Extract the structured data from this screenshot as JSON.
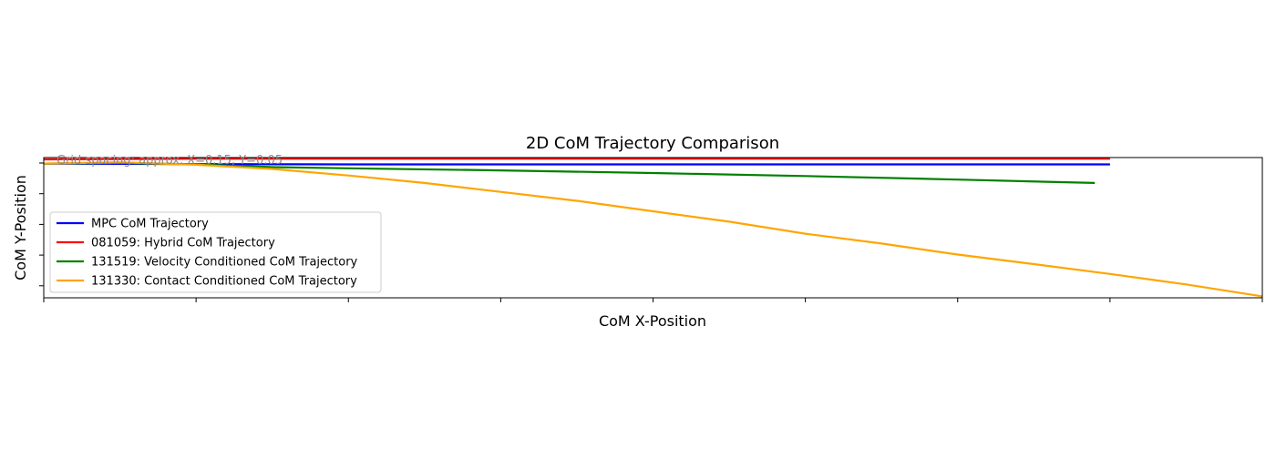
{
  "chart_data": {
    "type": "line",
    "title": "2D CoM Trajectory Comparison",
    "xlabel": "CoM X-Position",
    "ylabel": "CoM Y-Position",
    "xlim": [
      0,
      8
    ],
    "ylim": [
      -0.45,
      0.02
    ],
    "tick_labels_visible": false,
    "x_tick_count": 9,
    "y_tick_count": 5,
    "grid": false,
    "legend_position": "center-left",
    "annotation": "Grid spacing: approx. X=0.15, Y=0.05",
    "series": [
      {
        "name": "MPC CoM Trajectory",
        "color": "#0000ff",
        "x": [
          0,
          1,
          2,
          3,
          4,
          5,
          6,
          7
        ],
        "y": [
          0,
          -0.002,
          -0.003,
          -0.003,
          -0.003,
          -0.003,
          -0.003,
          -0.003
        ]
      },
      {
        "name": "081059: Hybrid CoM Trajectory",
        "color": "#ff0000",
        "x": [
          0,
          1,
          2,
          3,
          4,
          5,
          6,
          7
        ],
        "y": [
          0.014,
          0.016,
          0.016,
          0.016,
          0.016,
          0.016,
          0.016,
          0.016
        ]
      },
      {
        "name": "131519: Velocity Conditioned CoM Trajectory",
        "color": "#008000",
        "x": [
          0,
          0.5,
          1,
          1.5,
          2,
          3,
          4,
          5,
          6,
          6.9
        ],
        "y": [
          0,
          0.002,
          -0.003,
          -0.012,
          -0.016,
          -0.023,
          -0.032,
          -0.042,
          -0.054,
          -0.065
        ]
      },
      {
        "name": "131330: Contact Conditioned CoM Trajectory",
        "color": "#ffa500",
        "x": [
          0,
          0.5,
          1,
          1.5,
          2,
          2.5,
          3,
          3.5,
          4,
          4.5,
          5,
          5.5,
          6,
          6.5,
          7,
          7.5,
          8
        ],
        "y": [
          0,
          0.004,
          -0.004,
          -0.018,
          -0.04,
          -0.065,
          -0.095,
          -0.125,
          -0.16,
          -0.195,
          -0.235,
          -0.268,
          -0.305,
          -0.337,
          -0.37,
          -0.405,
          -0.445
        ]
      }
    ]
  }
}
